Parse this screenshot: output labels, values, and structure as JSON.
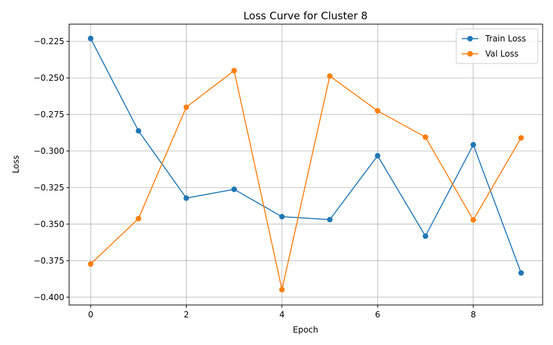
{
  "chart_data": {
    "type": "line",
    "title": "Loss Curve for Cluster 8",
    "xlabel": "Epoch",
    "ylabel": "Loss",
    "x": [
      0,
      1,
      2,
      3,
      4,
      5,
      6,
      7,
      8,
      9
    ],
    "xlim": [
      -0.45,
      9.45
    ],
    "ylim": [
      -0.4053,
      -0.2132
    ],
    "x_ticks": [
      0,
      2,
      4,
      6,
      8
    ],
    "x_tick_labels": [
      "0",
      "2",
      "4",
      "6",
      "8"
    ],
    "y_ticks": [
      -0.4,
      -0.375,
      -0.35,
      -0.325,
      -0.3,
      -0.275,
      -0.25,
      -0.225
    ],
    "y_tick_labels": [
      "−0.400",
      "−0.375",
      "−0.350",
      "−0.325",
      "−0.300",
      "−0.275",
      "−0.250",
      "−0.225"
    ],
    "grid": true,
    "legend_position": "top-right",
    "series": [
      {
        "name": "Train Loss",
        "color": "#1f77b4",
        "values": [
          -0.223,
          -0.2862,
          -0.3322,
          -0.3262,
          -0.3449,
          -0.3469,
          -0.3032,
          -0.3582,
          -0.2957,
          -0.3834
        ]
      },
      {
        "name": "Val Loss",
        "color": "#ff7f0e",
        "values": [
          -0.3773,
          -0.3462,
          -0.27,
          -0.245,
          -0.3948,
          -0.2487,
          -0.2725,
          -0.2905,
          -0.3471,
          -0.291
        ]
      }
    ]
  }
}
